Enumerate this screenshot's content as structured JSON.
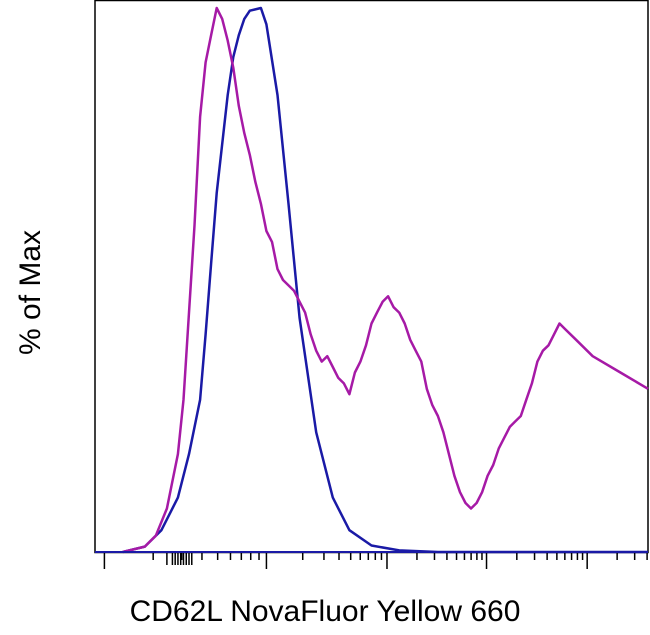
{
  "chart_data": {
    "type": "line",
    "title": "",
    "xlabel": "CD62L NovaFluor Yellow 660",
    "ylabel": "% of Max",
    "x_scale": "log",
    "xlim": [
      0,
      1
    ],
    "ylim": [
      0,
      100
    ],
    "grid": false,
    "legend": "none",
    "series": [
      {
        "color": "#1a1aa6",
        "x": [
          0.05,
          0.09,
          0.12,
          0.15,
          0.17,
          0.19,
          0.2,
          0.21,
          0.22,
          0.24,
          0.25,
          0.26,
          0.27,
          0.28,
          0.3,
          0.31,
          0.33,
          0.35,
          0.37,
          0.4,
          0.43,
          0.46,
          0.5,
          0.55,
          0.62,
          0.75,
          1.0
        ],
        "y": [
          0,
          1,
          4,
          10,
          18,
          28,
          40,
          53,
          66,
          84,
          91,
          95,
          98,
          99.5,
          100,
          97,
          84,
          64,
          43,
          22,
          10,
          4,
          1.2,
          0.3,
          0,
          0,
          0
        ]
      },
      {
        "color": "#a61aa6",
        "x": [
          0.05,
          0.09,
          0.1,
          0.11,
          0.13,
          0.15,
          0.16,
          0.17,
          0.18,
          0.19,
          0.2,
          0.21,
          0.22,
          0.23,
          0.24,
          0.25,
          0.26,
          0.27,
          0.28,
          0.29,
          0.3,
          0.31,
          0.32,
          0.33,
          0.34,
          0.35,
          0.36,
          0.37,
          0.38,
          0.39,
          0.4,
          0.41,
          0.42,
          0.43,
          0.44,
          0.45,
          0.46,
          0.47,
          0.48,
          0.49,
          0.5,
          0.51,
          0.52,
          0.53,
          0.54,
          0.55,
          0.56,
          0.57,
          0.58,
          0.59,
          0.6,
          0.61,
          0.62,
          0.63,
          0.64,
          0.65,
          0.66,
          0.67,
          0.68,
          0.69,
          0.7,
          0.71,
          0.72,
          0.73,
          0.74,
          0.75,
          0.76,
          0.77,
          0.78,
          0.79,
          0.8,
          0.81,
          0.82,
          0.83,
          0.84,
          0.85,
          0.87,
          0.9,
          0.95,
          1.0
        ],
        "y": [
          0,
          1,
          2,
          3,
          8,
          18,
          28,
          44,
          60,
          80,
          90,
          95,
          100,
          98,
          94,
          89,
          82,
          77,
          73,
          68,
          64,
          59,
          57,
          52,
          50,
          49,
          48,
          46,
          44,
          40,
          37,
          35,
          36,
          34,
          32,
          31,
          29,
          33,
          35,
          38,
          42,
          44,
          46,
          47,
          45,
          44,
          42,
          39,
          37,
          35,
          30,
          27,
          25,
          22,
          18,
          14,
          11,
          9,
          8,
          9,
          11,
          14,
          16,
          19,
          21,
          23,
          24,
          25,
          28,
          31,
          35,
          37,
          38,
          40,
          42,
          41,
          39,
          36,
          33,
          30
        ]
      }
    ]
  }
}
